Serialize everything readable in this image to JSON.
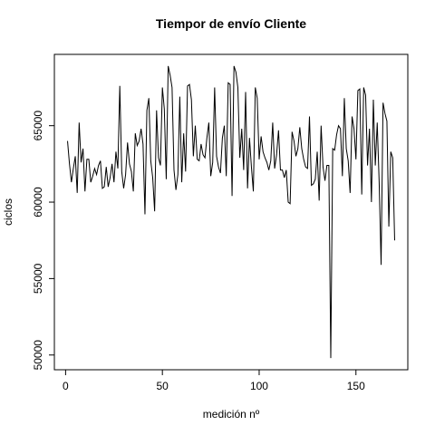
{
  "chart_data": {
    "type": "line",
    "title": "Tiempor de envío Cliente",
    "x_label": "medición nº",
    "y_label": "ciclos",
    "color": "#000000",
    "xlim": [
      -5.8,
      176.8
    ],
    "ylim": [
      49036,
      69664
    ],
    "xticks": [
      0,
      50,
      100,
      150
    ],
    "yticks": [
      50000,
      55000,
      60000,
      65000
    ],
    "x": [
      1,
      2,
      3,
      4,
      5,
      6,
      7,
      8,
      9,
      10,
      11,
      12,
      13,
      14,
      15,
      16,
      17,
      18,
      19,
      20,
      21,
      22,
      23,
      24,
      25,
      26,
      27,
      28,
      29,
      30,
      31,
      32,
      33,
      34,
      35,
      36,
      37,
      38,
      39,
      40,
      41,
      42,
      43,
      44,
      45,
      46,
      47,
      48,
      49,
      50,
      51,
      52,
      53,
      54,
      55,
      56,
      57,
      58,
      59,
      60,
      61,
      62,
      63,
      64,
      65,
      66,
      67,
      68,
      69,
      70,
      71,
      72,
      73,
      74,
      75,
      76,
      77,
      78,
      79,
      80,
      81,
      82,
      83,
      84,
      85,
      86,
      87,
      88,
      89,
      90,
      91,
      92,
      93,
      94,
      95,
      96,
      97,
      98,
      99,
      100,
      101,
      102,
      103,
      104,
      105,
      106,
      107,
      108,
      109,
      110,
      111,
      112,
      113,
      114,
      115,
      116,
      117,
      118,
      119,
      120,
      121,
      122,
      123,
      124,
      125,
      126,
      127,
      128,
      129,
      130,
      131,
      132,
      133,
      134,
      135,
      136,
      137,
      138,
      139,
      140,
      141,
      142,
      143,
      144,
      145,
      146,
      147,
      148,
      149,
      150,
      151,
      152,
      153,
      154,
      155,
      156,
      157,
      158,
      159,
      160,
      161,
      162,
      163,
      164,
      165,
      166,
      167,
      168,
      169,
      170
    ],
    "values": [
      64000,
      62500,
      61300,
      62200,
      63000,
      60600,
      65200,
      62600,
      63500,
      60700,
      62800,
      62800,
      61300,
      61700,
      62200,
      61800,
      62400,
      62700,
      60900,
      61000,
      62300,
      61000,
      61600,
      62500,
      61300,
      63300,
      62200,
      67600,
      62000,
      60900,
      61800,
      63900,
      62500,
      62000,
      60700,
      64500,
      63700,
      64000,
      64800,
      63800,
      59200,
      66000,
      66800,
      62700,
      61600,
      59400,
      66000,
      62900,
      62400,
      67500,
      66100,
      61500,
      68900,
      68300,
      67500,
      62100,
      60800,
      61800,
      66900,
      61300,
      64500,
      62000,
      67600,
      67700,
      66700,
      63000,
      65000,
      62800,
      62700,
      63800,
      63100,
      62900,
      64200,
      65200,
      61700,
      62600,
      67500,
      63000,
      62300,
      61900,
      64200,
      65000,
      61700,
      67800,
      67700,
      60400,
      68900,
      68500,
      67500,
      62900,
      64800,
      62100,
      67200,
      60900,
      64200,
      62300,
      60700,
      67500,
      66800,
      62800,
      64300,
      63300,
      62900,
      62600,
      62100,
      62700,
      65200,
      62200,
      63100,
      64700,
      62100,
      62100,
      61600,
      62100,
      60000,
      59900,
      64600,
      64000,
      63000,
      63500,
      64900,
      63500,
      62800,
      62300,
      62200,
      65600,
      61100,
      61200,
      61500,
      63300,
      60100,
      65000,
      62300,
      61400,
      62400,
      62400,
      49800,
      63500,
      63400,
      64400,
      65000,
      64800,
      61700,
      66800,
      63500,
      62700,
      60600,
      65600,
      64800,
      62800,
      67300,
      67400,
      60500,
      67500,
      67000,
      62400,
      64800,
      60000,
      66700,
      62400,
      65200,
      61300,
      55900,
      66500,
      65800,
      65300,
      58400,
      63300,
      62900,
      57500
    ]
  }
}
